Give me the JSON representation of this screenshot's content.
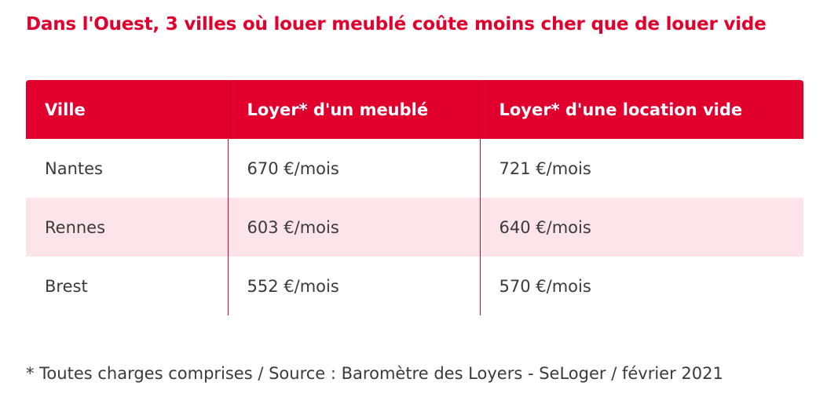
{
  "title": "Dans l'Ouest, 3 villes où louer meublé coûte moins cher que de louer vide",
  "table": {
    "headers": [
      "Ville",
      "Loyer* d'un meublé",
      "Loyer* d'une location vide"
    ],
    "rows": [
      [
        "Nantes",
        "670 €/mois",
        "721 €/mois"
      ],
      [
        "Rennes",
        "603 €/mois",
        "640 €/mois"
      ],
      [
        "Brest",
        "552 €/mois",
        "570 €/mois"
      ]
    ]
  },
  "footnote": "* Toutes charges comprises / Source : Baromètre des Loyers - SeLoger / février 2021",
  "colors": {
    "accent": "#e1002d",
    "row_highlight": "#fce4ea",
    "text": "#3a3a3a"
  }
}
